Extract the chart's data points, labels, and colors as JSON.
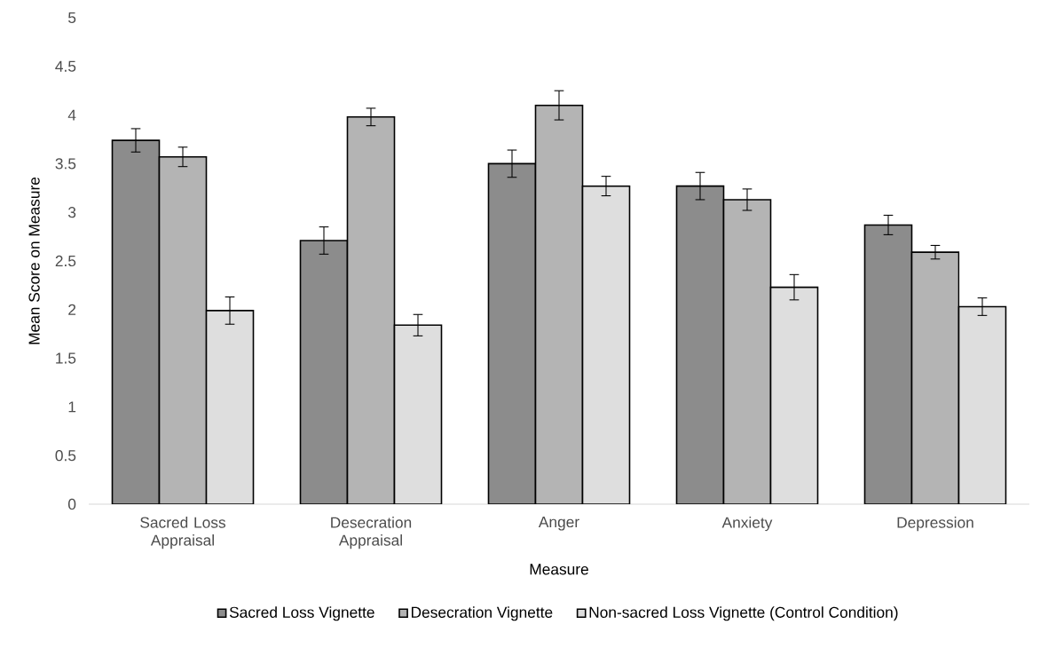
{
  "chart_data": {
    "type": "bar",
    "xlabel": "Measure",
    "ylabel": "Mean Score on Measure",
    "categories": [
      "Sacred Loss Appraisal",
      "Desecration Appraisal",
      "Anger",
      "Anxiety",
      "Depression"
    ],
    "series": [
      {
        "name": "Sacred Loss Vignette",
        "color": "#8c8c8c",
        "values": [
          3.74,
          2.71,
          3.5,
          3.27,
          2.87
        ],
        "errors": [
          0.12,
          0.14,
          0.14,
          0.14,
          0.1
        ]
      },
      {
        "name": "Desecration Vignette",
        "color": "#b4b4b4",
        "values": [
          3.57,
          3.98,
          4.1,
          3.13,
          2.59
        ],
        "errors": [
          0.1,
          0.09,
          0.15,
          0.11,
          0.07
        ]
      },
      {
        "name": "Non-sacred Loss Vignette (Control Condition)",
        "color": "#dedede",
        "values": [
          1.99,
          1.84,
          3.27,
          2.23,
          2.03
        ],
        "errors": [
          0.14,
          0.11,
          0.1,
          0.13,
          0.09
        ]
      }
    ],
    "ylim": [
      0,
      5
    ],
    "yticks": [
      0,
      0.5,
      1,
      1.5,
      2,
      2.5,
      3,
      3.5,
      4,
      4.5,
      5
    ],
    "grid": false,
    "legend": "bottom"
  }
}
